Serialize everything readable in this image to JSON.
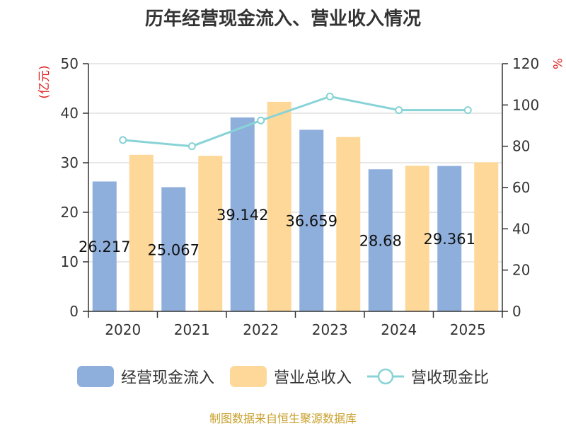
{
  "chart_data": {
    "type": "bar",
    "title": "历年经营现金流入、营业收入情况",
    "categories": [
      "2020",
      "2021",
      "2022",
      "2023",
      "2024",
      "2025"
    ],
    "series": [
      {
        "name": "经营现金流入",
        "kind": "bar",
        "axis": "left",
        "color": "#8eaedb",
        "values": [
          26.217,
          25.067,
          39.142,
          36.659,
          28.68,
          29.361
        ],
        "labels": [
          "26.217",
          "25.067",
          "39.142",
          "36.659",
          "28.68",
          "29.361"
        ]
      },
      {
        "name": "营业总收入",
        "kind": "bar",
        "axis": "left",
        "color": "#fdd898",
        "values": [
          31.6,
          31.4,
          42.3,
          35.2,
          29.4,
          30.1
        ]
      },
      {
        "name": "营收现金比",
        "kind": "line",
        "axis": "right",
        "color": "#88d3d6",
        "values": [
          83,
          80,
          92.5,
          104.1,
          97.5,
          97.5
        ]
      }
    ],
    "y_left": {
      "label": "(亿元)",
      "min": 0,
      "max": 50,
      "ticks": [
        0,
        10,
        20,
        30,
        40,
        50
      ]
    },
    "y_right": {
      "label": "%",
      "min": 0,
      "max": 120,
      "ticks": [
        0,
        20,
        40,
        60,
        80,
        100,
        120
      ]
    },
    "grid": true,
    "legend_position": "bottom"
  },
  "source": "制图数据来自恒生聚源数据库"
}
